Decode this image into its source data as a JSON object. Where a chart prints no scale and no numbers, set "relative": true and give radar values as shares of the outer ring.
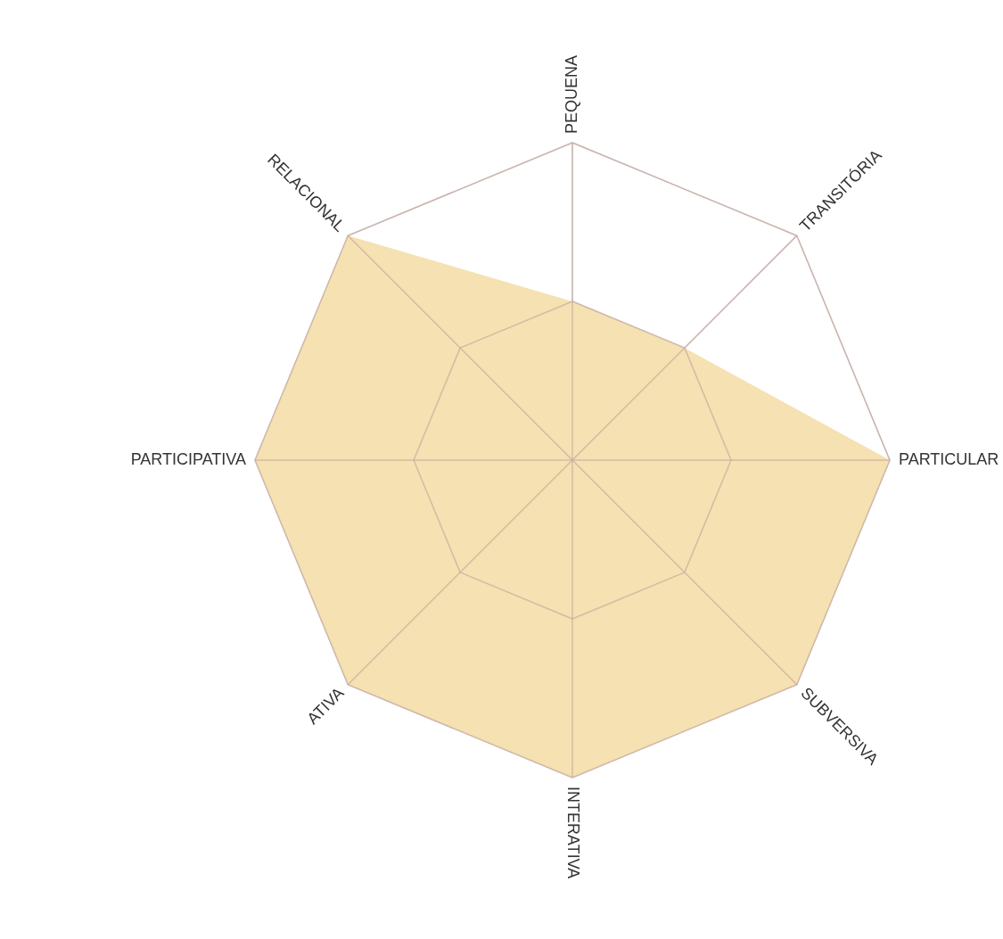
{
  "chart_data": {
    "type": "radar",
    "relative": true,
    "grid": true,
    "categories": [
      "PEQUENA",
      "TRANSITÓRIA",
      "PARTICULAR",
      "SUBVERSIVA",
      "INTERATIVA",
      "ATIVA",
      "PARTICIPATIVA",
      "RELACIONAL"
    ],
    "series": [
      {
        "color": "#f5e1b1",
        "values": [
          0.5,
          0.5,
          1,
          1,
          1,
          1,
          1,
          1
        ]
      }
    ]
  }
}
